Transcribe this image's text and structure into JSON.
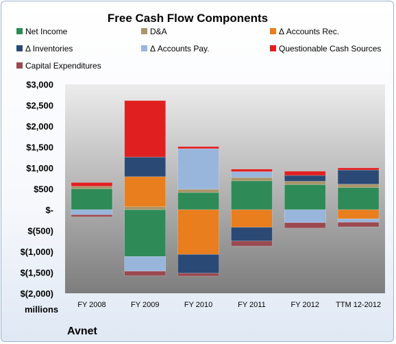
{
  "chart_data": {
    "type": "bar",
    "stacked": true,
    "title": "Free Cash Flow Components",
    "ylabel": "millions",
    "ylim": [
      -2000,
      3000
    ],
    "grid": false,
    "legend_placement": "top",
    "categories": [
      "FY 2008",
      "FY 2009",
      "FY 2010",
      "FY 2011",
      "FY 2012",
      "TTM 12-2012"
    ],
    "y_tick_values": [
      3000,
      2500,
      2000,
      1500,
      1000,
      500,
      0,
      -500,
      -1000,
      -1500,
      -2000
    ],
    "y_tick_labels": [
      "$3,000",
      "$2,500",
      "$2,000",
      "$1,500",
      "$1,000",
      "$500",
      "$-",
      "$(500)",
      "$(1,000)",
      "$(1,500)",
      "$(2,000)"
    ],
    "series": [
      {
        "name": "Net Income",
        "color": "#2e8b57",
        "values": [
          500,
          -1120,
          410,
          690,
          600,
          530
        ]
      },
      {
        "name": "D&A",
        "color": "#a8956a",
        "values": [
          60,
          70,
          80,
          80,
          80,
          80
        ]
      },
      {
        "name": "Δ Accounts Rec.",
        "color": "#e87e1e",
        "values": [
          0,
          720,
          -1070,
          -420,
          0,
          -220
        ]
      },
      {
        "name": "Δ Inventories",
        "color": "#2a4a75",
        "values": [
          0,
          470,
          -450,
          -330,
          140,
          340
        ]
      },
      {
        "name": "Δ Accounts Pay.",
        "color": "#98b6dc",
        "values": [
          -120,
          -350,
          970,
          140,
          -310,
          -80
        ]
      },
      {
        "name": "Questionable Cash Sources",
        "color": "#e02020",
        "values": [
          90,
          1350,
          50,
          60,
          100,
          50
        ]
      },
      {
        "name": "Capital Expenditures",
        "color": "#9a4a50",
        "values": [
          -50,
          -110,
          -70,
          -120,
          -130,
          -110
        ]
      }
    ],
    "footer": "Avnet"
  },
  "colors": {
    "plot_top": "#ececec",
    "plot_bottom": "#7d7d7d"
  }
}
